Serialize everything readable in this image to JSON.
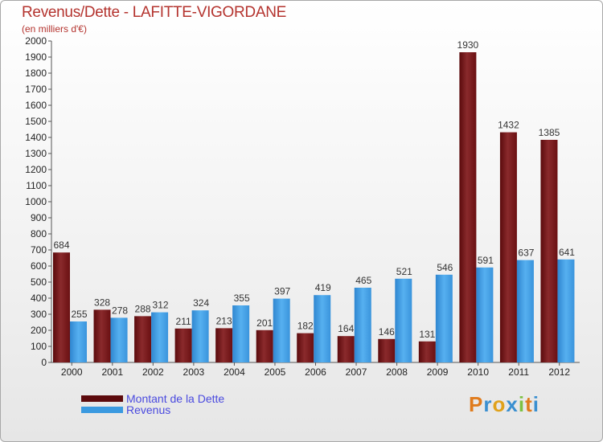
{
  "title": "Revenus/Dette - LAFITTE-VIGORDANE",
  "subtitle": "(en milliers d'€)",
  "colors": {
    "dette": "#7a1a1c",
    "revenus": "#3b9ae0",
    "title": "#b4332e",
    "legend_text": "#4a4adf"
  },
  "legend": [
    {
      "label": "Montant de la Dette",
      "color": "#5c0a0c"
    },
    {
      "label": "Revenus",
      "color": "#3b9ae0"
    }
  ],
  "logo": {
    "letters": [
      "P",
      "r",
      "o",
      "x",
      "i",
      "t",
      "i"
    ],
    "colors": [
      "#e07b1c",
      "#3a8fd0",
      "#e0a21c",
      "#3a8fd0",
      "#7cc142",
      "#e07b1c",
      "#3a8fd0"
    ]
  },
  "chart_data": {
    "type": "bar",
    "title": "Revenus/Dette - LAFITTE-VIGORDANE",
    "ylabel": "(en milliers d'€)",
    "xlabel": "",
    "categories": [
      "2000",
      "2001",
      "2002",
      "2003",
      "2004",
      "2005",
      "2006",
      "2007",
      "2008",
      "2009",
      "2010",
      "2011",
      "2012"
    ],
    "series": [
      {
        "name": "Montant de la Dette",
        "values": [
          684,
          328,
          288,
          211,
          213,
          201,
          182,
          164,
          146,
          131,
          1930,
          1432,
          1385
        ]
      },
      {
        "name": "Revenus",
        "values": [
          255,
          278,
          312,
          324,
          355,
          397,
          419,
          465,
          521,
          546,
          591,
          637,
          641
        ]
      }
    ],
    "ylim": [
      0,
      2000
    ],
    "yticks": [
      0,
      100,
      200,
      300,
      400,
      500,
      600,
      700,
      800,
      900,
      1000,
      1100,
      1200,
      1300,
      1400,
      1500,
      1600,
      1700,
      1800,
      1900,
      2000
    ],
    "grid": false,
    "legend_position": "bottom-left"
  }
}
